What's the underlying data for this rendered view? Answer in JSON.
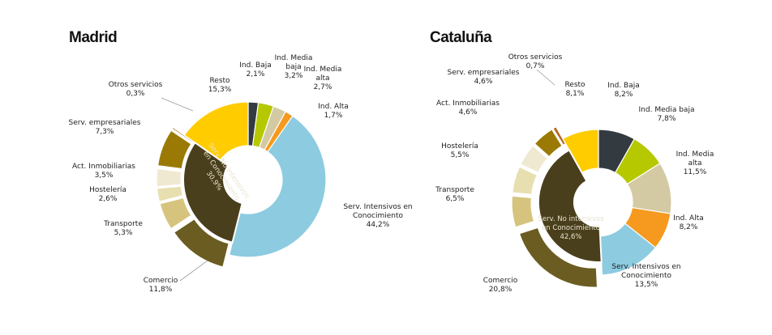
{
  "titles": {
    "madrid": "Madrid",
    "cataluna": "Cataluña"
  },
  "colors": {
    "ind_baja": "#333a40",
    "ind_media_baja": "#b5c800",
    "ind_media_alta": "#d3caa3",
    "ind_alta": "#f59a1f",
    "serv_intensivos": "#8ccbe0",
    "serv_no_intensivos": "#4a3f1c",
    "comercio": "#6b5d22",
    "transporte": "#d6c47e",
    "hosteleria": "#e8dfb0",
    "act_inmobiliarias": "#f0e9d2",
    "serv_empresariales": "#9a7a05",
    "otros_servicios": "#b5651d",
    "resto": "#ffcc00"
  },
  "chart_data": [
    {
      "type": "pie",
      "title": "Madrid",
      "outer": [
        {
          "key": "ind_baja",
          "label": [
            "Ind. Baja",
            "2,1%"
          ],
          "value": 2.1
        },
        {
          "key": "ind_media_baja",
          "label": [
            "Ind. Media",
            "baja",
            "3,2%"
          ],
          "value": 3.2
        },
        {
          "key": "ind_media_alta",
          "label": [
            "Ind. Media",
            "alta",
            "2,7%"
          ],
          "value": 2.7
        },
        {
          "key": "ind_alta",
          "label": [
            "Ind. Alta",
            "1,7%"
          ],
          "value": 1.7
        },
        {
          "key": "serv_intensivos",
          "label": [
            "Serv. Intensivos en",
            "Conocimiento",
            "44,2%"
          ],
          "value": 44.2
        },
        {
          "key": "comercio",
          "label": [
            "Comercio",
            "11,8%"
          ],
          "value": 11.8
        },
        {
          "key": "transporte",
          "label": [
            "Transporte",
            "5,3%"
          ],
          "value": 5.3
        },
        {
          "key": "hosteleria",
          "label": [
            "Hostelería",
            "2,6%"
          ],
          "value": 2.6
        },
        {
          "key": "act_inmobiliarias",
          "label": [
            "Act. Inmobiliarias",
            "3,5%"
          ],
          "value": 3.5
        },
        {
          "key": "serv_empresariales",
          "label": [
            "Serv. empresariales",
            "7,3%"
          ],
          "value": 7.3
        },
        {
          "key": "otros_servicios",
          "label": [
            "Otros servicios",
            "0,3%"
          ],
          "value": 0.3
        },
        {
          "key": "resto",
          "label": [
            "Resto",
            "15,3%"
          ],
          "value": 15.3
        }
      ],
      "inner": {
        "key": "serv_no_intensivos",
        "label": [
          "Serv. No intensivos",
          "en Conocimiento",
          "30,9%"
        ],
        "value": 30.9
      }
    },
    {
      "type": "pie",
      "title": "Cataluña",
      "outer": [
        {
          "key": "ind_baja",
          "label": [
            "Ind. Baja",
            "8,2%"
          ],
          "value": 8.2
        },
        {
          "key": "ind_media_baja",
          "label": [
            "Ind. Media baja",
            "7,8%"
          ],
          "value": 7.8
        },
        {
          "key": "ind_media_alta",
          "label": [
            "Ind. Media",
            "alta",
            "11,5%"
          ],
          "value": 11.5
        },
        {
          "key": "ind_alta",
          "label": [
            "Ind. Alta",
            "8,2%"
          ],
          "value": 8.2
        },
        {
          "key": "serv_intensivos",
          "label": [
            "Serv. Intensivos en",
            "Conocimiento",
            "13,5%"
          ],
          "value": 13.5
        },
        {
          "key": "comercio",
          "label": [
            "Comercio",
            "20,8%"
          ],
          "value": 20.8
        },
        {
          "key": "transporte",
          "label": [
            "Transporte",
            "6,5%"
          ],
          "value": 6.5
        },
        {
          "key": "hosteleria",
          "label": [
            "Hostelería",
            "5,5%"
          ],
          "value": 5.5
        },
        {
          "key": "act_inmobiliarias",
          "label": [
            "Act. Inmobiliarias",
            "4,6%"
          ],
          "value": 4.6
        },
        {
          "key": "serv_empresariales",
          "label": [
            "Serv. empresariales",
            "4,6%"
          ],
          "value": 4.6
        },
        {
          "key": "otros_servicios",
          "label": [
            "Otros servicios",
            "0,7%"
          ],
          "value": 0.7
        },
        {
          "key": "resto",
          "label": [
            "Resto",
            "8,1%"
          ],
          "value": 8.1
        }
      ],
      "inner": {
        "key": "serv_no_intensivos",
        "label": [
          "Serv. No intensivos",
          "en Conocimiento",
          "42,6%"
        ],
        "value": 42.6
      }
    }
  ]
}
